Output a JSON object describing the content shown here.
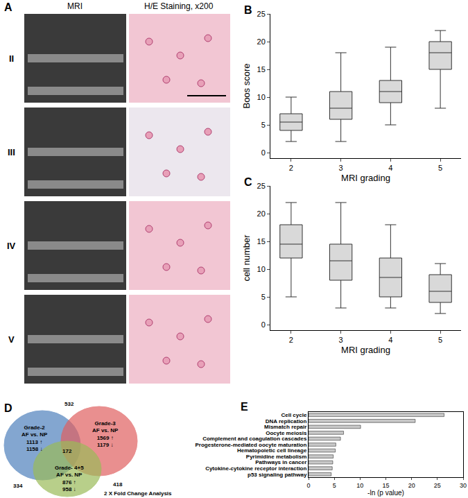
{
  "panel_a": {
    "panel": "A",
    "column_titles": [
      "MRI",
      "H/E Staining, x200"
    ],
    "rows": [
      "II",
      "III",
      "IV",
      "V"
    ]
  },
  "chart_data": [
    {
      "panel": "B",
      "type": "box",
      "x_label": "MRI grading",
      "y_label": "Boos score",
      "categories": [
        "2",
        "3",
        "4",
        "5"
      ],
      "boxes": {
        "min": [
          2,
          2,
          5,
          8
        ],
        "q1": [
          4,
          6,
          9,
          15
        ],
        "median": [
          5.5,
          8,
          11,
          18
        ],
        "q3": [
          7,
          11,
          13,
          20
        ],
        "max": [
          10,
          18,
          19,
          22
        ]
      },
      "color": "#d9d9d9",
      "ylim": [
        -1,
        25
      ],
      "yticks": [
        0,
        5,
        10,
        15,
        20,
        25
      ]
    },
    {
      "panel": "C",
      "type": "box",
      "x_label": "MRI grading",
      "y_label": "cell number",
      "categories": [
        "2",
        "3",
        "4",
        "5"
      ],
      "boxes": {
        "min": [
          5,
          3,
          3,
          2
        ],
        "q1": [
          12,
          8,
          5,
          4
        ],
        "median": [
          14.5,
          11.5,
          8.5,
          6
        ],
        "q3": [
          18,
          14.5,
          12,
          9
        ],
        "max": [
          22,
          22,
          18,
          11
        ]
      },
      "color": "#d9d9d9",
      "ylim": [
        -1,
        25
      ],
      "yticks": [
        0,
        5,
        10,
        15,
        20,
        25
      ]
    },
    {
      "panel": "E",
      "type": "bar",
      "orientation": "horizontal",
      "x_label": "-ln (p value)",
      "categories": [
        "Cell cycle",
        "DNA replication",
        "Mismatch repair",
        "Oocyte meiosis",
        "Complement and coagulation cascades",
        "Progesterone-mediated oocyte maturation",
        "Hematopoietic cell lineage",
        "Pyrimidine metabolism",
        "Pathways in cancer",
        "Cytokine-cytokine receptor interaction",
        "p53 signaling pathway"
      ],
      "values": [
        26.3,
        20.7,
        10.1,
        6.8,
        6.2,
        5.3,
        5.2,
        4.8,
        4.7,
        4.6,
        4.4
      ],
      "color": "#c8c8c8",
      "xlim": [
        0,
        30
      ],
      "xticks": [
        0,
        5,
        10,
        15,
        20,
        25,
        30
      ]
    }
  ],
  "venn": {
    "panel": "D",
    "sets": [
      {
        "name": "Grade-2",
        "comparison": "AF vs. NP",
        "up": "1113 ↑",
        "down": "1158 ↓",
        "color": "#4f81bd"
      },
      {
        "name": "Grade-3",
        "comparison": "AF vs. NP",
        "up": "1569 ↑",
        "down": "1179 ↓",
        "color": "#e06060"
      },
      {
        "name": "Grade- 4+5",
        "comparison": "AF vs. NP",
        "up": "876 ↑",
        "down": "958 ↓",
        "color": "#9bbb59"
      }
    ],
    "overlaps": [
      {
        "sets": [
          "Grade-2",
          "Grade-3"
        ],
        "count": 532
      },
      {
        "sets": [
          "Grade-2",
          "Grade- 4+5"
        ],
        "count": 334
      },
      {
        "sets": [
          "Grade-3",
          "Grade- 4+5"
        ],
        "count": 418
      },
      {
        "sets": [
          "Grade-2",
          "Grade-3",
          "Grade- 4+5"
        ],
        "count": 172
      }
    ],
    "note": "2 X Fold Change Analysis"
  }
}
